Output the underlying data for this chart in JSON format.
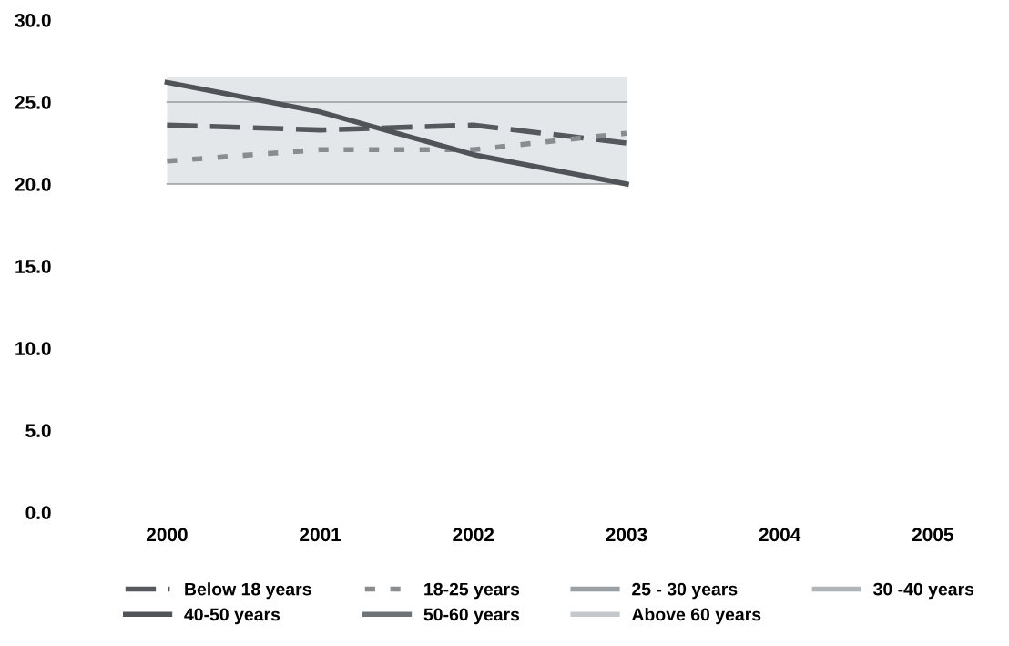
{
  "chart_data": {
    "type": "line",
    "categories": [
      "2000",
      "2001",
      "2002",
      "2003",
      "2004",
      "2005"
    ],
    "ylim": [
      0,
      30
    ],
    "yticks": [
      {
        "value": 0,
        "label": "0.0"
      },
      {
        "value": 5,
        "label": "5.0"
      },
      {
        "value": 10,
        "label": "10.0"
      },
      {
        "value": 15,
        "label": "15.0"
      },
      {
        "value": 20,
        "label": "20.0"
      },
      {
        "value": 25,
        "label": "25.0"
      },
      {
        "value": 30,
        "label": "30.0"
      }
    ],
    "legend": "bottom",
    "marker": "none",
    "ref_lines": [
      {
        "axis": "y",
        "value": 20,
        "color": "#9a9a9a"
      },
      {
        "axis": "y",
        "value": 25,
        "color": "#9a9a9a"
      }
    ],
    "bands": [
      {
        "axis": "y",
        "from": 20,
        "to": 26.5,
        "color": "#e4e7ea"
      }
    ],
    "series": [
      {
        "name": "Below 18 years",
        "color": "#55595d",
        "line_style": "dashed",
        "values": [
          23.6,
          23.3,
          23.6,
          22.5,
          null,
          null
        ]
      },
      {
        "name": "18-25 years",
        "color": "#8a8d90",
        "line_style": "dotted",
        "values": [
          21.4,
          22.1,
          22.1,
          23.1,
          null,
          null
        ]
      },
      {
        "name": "25 - 30 years",
        "color": "#9aa0a6",
        "line_style": "solid",
        "values": [
          null,
          null,
          null,
          null,
          null,
          null
        ]
      },
      {
        "name": "30 -40 years",
        "color": "#b0b5ba",
        "line_style": "solid",
        "values": [
          null,
          null,
          null,
          null,
          null,
          null
        ]
      },
      {
        "name": "40-50 years",
        "color": "#505357",
        "line_style": "solid",
        "values": [
          26.2,
          24.4,
          21.8,
          20.0,
          null,
          null
        ]
      },
      {
        "name": "50-60 years",
        "color": "#6e7378",
        "line_style": "solid",
        "values": [
          null,
          null,
          null,
          null,
          null,
          null
        ]
      },
      {
        "name": "Above 60 years",
        "color": "#c4c8cc",
        "line_style": "solid",
        "values": [
          null,
          null,
          null,
          null,
          null,
          null
        ]
      }
    ]
  }
}
